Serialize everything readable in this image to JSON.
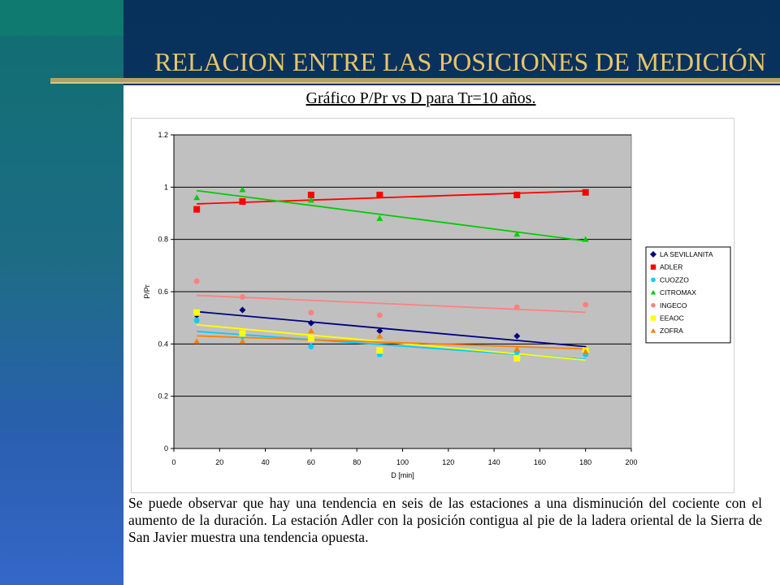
{
  "slide": {
    "title": "RELACION ENTRE LAS POSICIONES DE MEDICIÓN",
    "subtitle": "Gráfico P/Pr vs D para Tr=10 años.",
    "caption": "Se puede observar que hay una tendencia en seis de las estaciones a una disminución del cociente con el aumento de la duración. La estación Adler con la posición contigua al pie de la ladera oriental de la Sierra de San Javier muestra una tendencia opuesta.",
    "colors": {
      "title": "#e8c468",
      "background": "#0b3060",
      "plot_area": "#c0c0c0"
    }
  },
  "chart_data": {
    "type": "scatter",
    "title": "",
    "xlabel": "D [min]",
    "ylabel": "P/Pr",
    "xlim": [
      0,
      200
    ],
    "ylim": [
      0,
      1.2
    ],
    "xticks": [
      0,
      20,
      40,
      60,
      80,
      100,
      120,
      140,
      160,
      180,
      200
    ],
    "yticks": [
      0,
      0.2,
      0.4,
      0.6,
      0.8,
      1,
      1.2
    ],
    "grid": "horizontal",
    "legend_position": "right",
    "trendlines": "linear",
    "x": [
      10,
      30,
      60,
      90,
      150,
      180
    ],
    "series": [
      {
        "name": "LA SEVILLANITA",
        "marker": "diamond",
        "color": "#000080",
        "values": [
          0.51,
          0.53,
          0.48,
          0.45,
          0.43,
          0.38
        ]
      },
      {
        "name": "ADLER",
        "marker": "square",
        "color": "#ff0000",
        "values": [
          0.915,
          0.945,
          0.97,
          0.97,
          0.97,
          0.98
        ]
      },
      {
        "name": "CUOZZO",
        "marker": "circle",
        "color": "#00ccff",
        "values": [
          0.49,
          0.43,
          0.39,
          0.36,
          0.37,
          0.36
        ]
      },
      {
        "name": "CITROMAX",
        "marker": "triangle",
        "color": "#00cc00",
        "values": [
          0.96,
          0.99,
          0.95,
          0.88,
          0.82,
          0.8
        ]
      },
      {
        "name": "INGECO",
        "marker": "circle",
        "color": "#ff8080",
        "values": [
          0.64,
          0.58,
          0.52,
          0.51,
          0.54,
          0.55
        ]
      },
      {
        "name": "EEAOC",
        "marker": "square",
        "color": "#ffff00",
        "values": [
          0.52,
          0.44,
          0.42,
          0.375,
          0.345,
          0.375
        ]
      },
      {
        "name": "ZOFRA",
        "marker": "triangle",
        "color": "#ff8000",
        "values": [
          0.41,
          0.41,
          0.45,
          0.43,
          0.38,
          0.37
        ]
      }
    ]
  }
}
